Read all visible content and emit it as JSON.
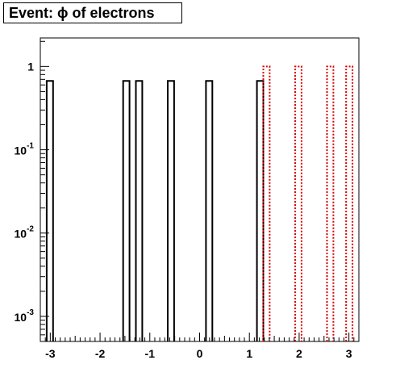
{
  "chart_data": {
    "type": "bar",
    "title": "Event: ϕ of electrons",
    "xlabel": "",
    "ylabel": "",
    "xlim": [
      -3.2,
      3.2
    ],
    "ylim": [
      0.0005,
      2.2
    ],
    "yscale": "log",
    "grid": false,
    "legend": "none",
    "xticks": [
      -3,
      -2,
      -1,
      0,
      1,
      2,
      3
    ],
    "xtick_labels": [
      "-3",
      "-2",
      "-1",
      "0",
      "1",
      "2",
      "3"
    ],
    "yticks": [
      {
        "value": 1,
        "base": "1",
        "exp": ""
      },
      {
        "value": 0.1,
        "base": "10",
        "exp": "-1"
      },
      {
        "value": 0.01,
        "base": "10",
        "exp": "-2"
      },
      {
        "value": 0.001,
        "base": "10",
        "exp": "-3"
      }
    ],
    "bin_width": 0.128,
    "series": [
      {
        "color": "#000000",
        "style": "solid",
        "bins": [
          {
            "x": -3.072,
            "y": 0.67
          },
          {
            "x": -1.536,
            "y": 0.67
          },
          {
            "x": -1.28,
            "y": 0.67
          },
          {
            "x": -0.64,
            "y": 0.67
          },
          {
            "x": 0.128,
            "y": 0.67
          },
          {
            "x": 1.152,
            "y": 0.67
          }
        ]
      },
      {
        "color": "#dd0000",
        "style": "dotted",
        "bins": [
          {
            "x": 1.28,
            "y": 1
          },
          {
            "x": 1.92,
            "y": 1
          },
          {
            "x": 2.56,
            "y": 1
          },
          {
            "x": 2.944,
            "y": 1
          }
        ]
      }
    ]
  }
}
